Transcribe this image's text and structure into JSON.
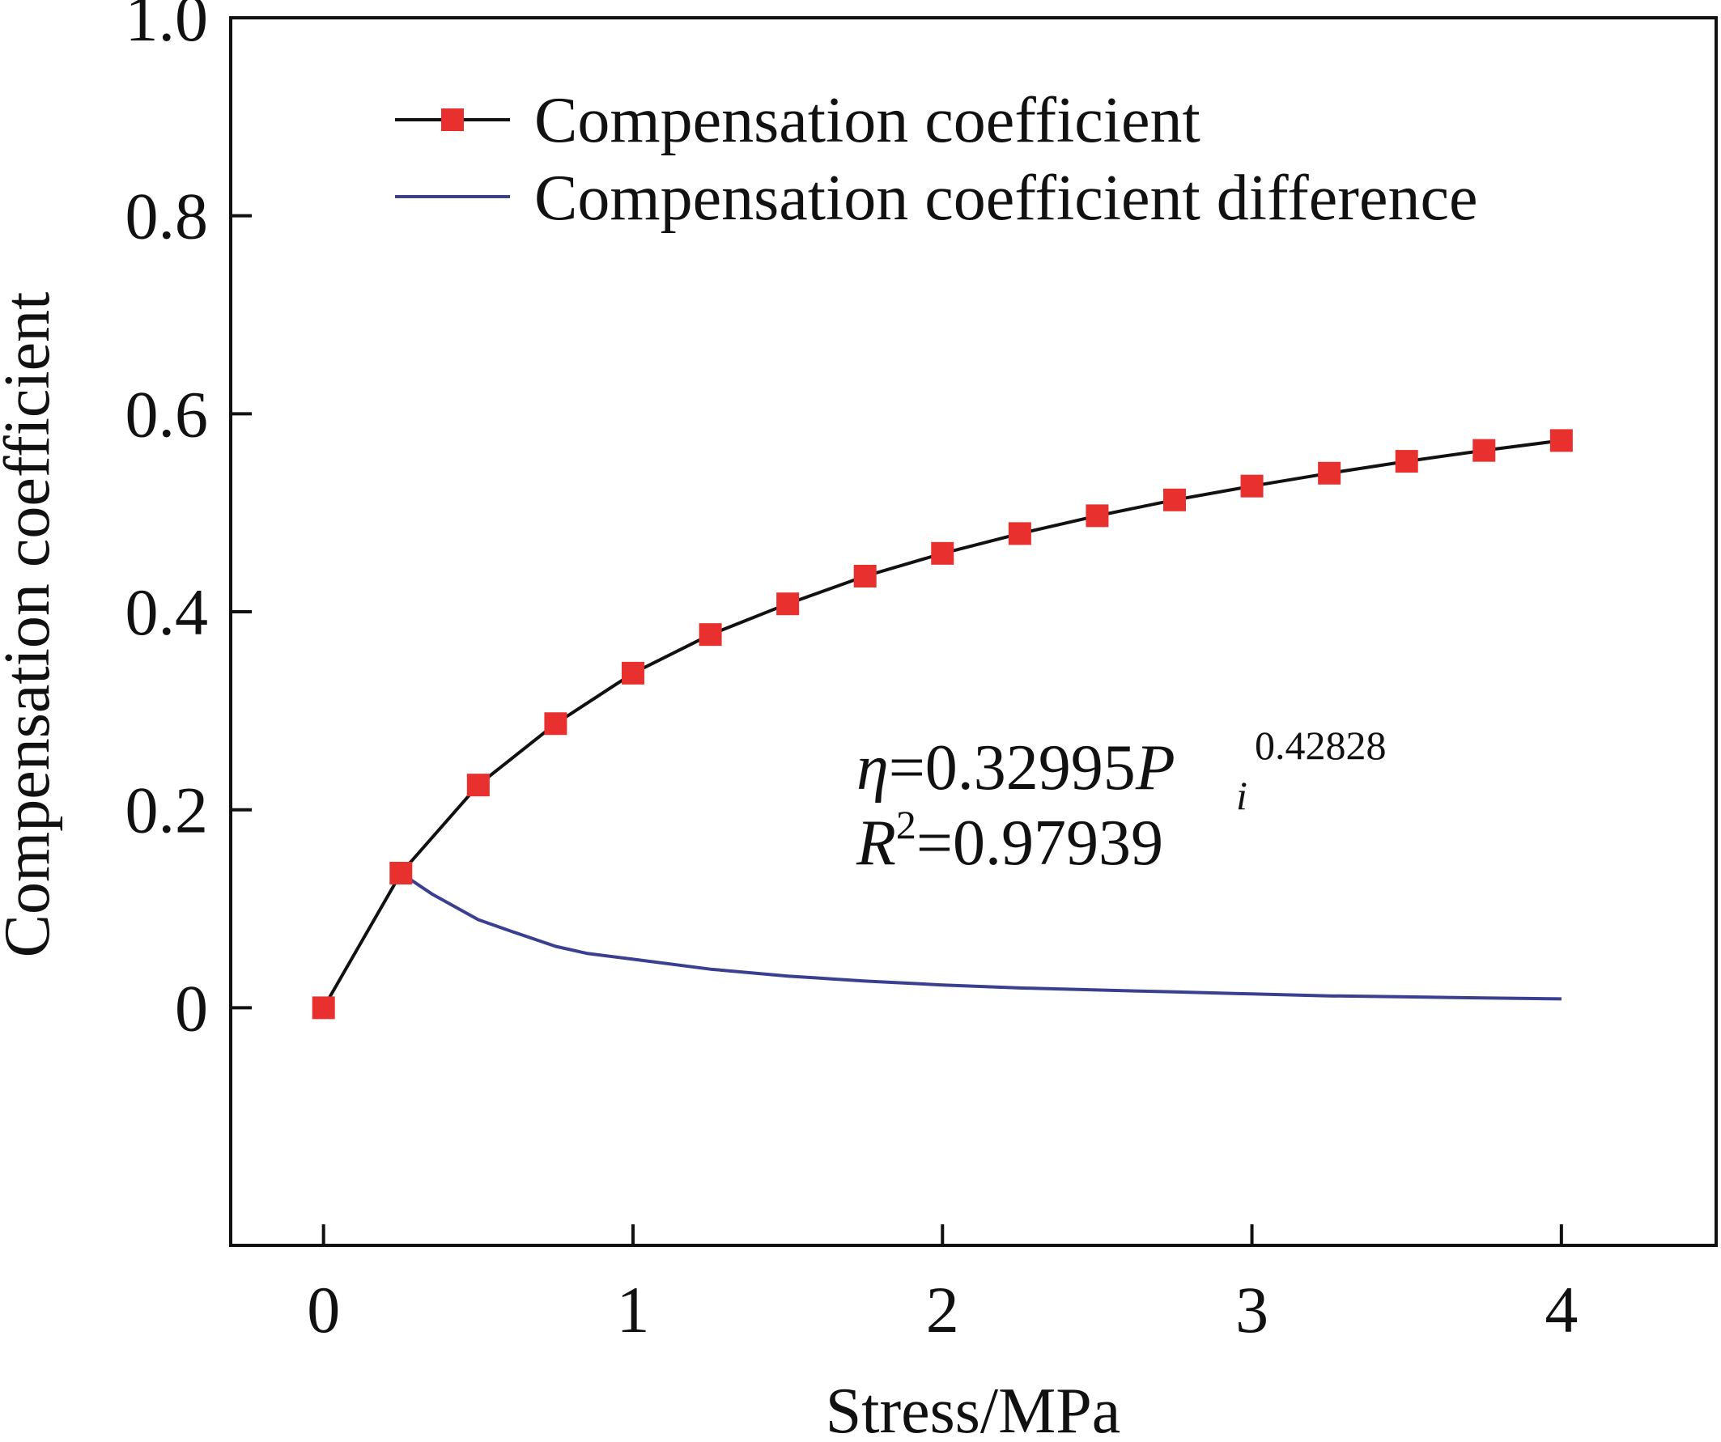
{
  "chart_data": {
    "type": "line",
    "title": "",
    "xlabel": "Stress/MPa",
    "ylabel": "Compensation coefficient",
    "xlim": [
      -0.3,
      4.5
    ],
    "ylim": [
      -0.24,
      1.0
    ],
    "xticks": [
      0,
      1,
      2,
      3,
      4
    ],
    "xtick_labels": [
      "0",
      "1",
      "2",
      "3",
      "4"
    ],
    "yticks": [
      0,
      0.2,
      0.4,
      0.6,
      0.8,
      1.0
    ],
    "ytick_labels": [
      "0",
      "0.2",
      "0.4",
      "0.6",
      "0.8",
      "1.0"
    ],
    "grid": false,
    "legend_position": "top",
    "series": [
      {
        "name": "Compensation coefficient",
        "color": "#111111",
        "marker": "square",
        "marker_color": "#e8302e",
        "x": [
          0,
          0.25,
          0.5,
          0.75,
          1.0,
          1.25,
          1.5,
          1.75,
          2.0,
          2.25,
          2.5,
          2.75,
          3.0,
          3.25,
          3.5,
          3.75,
          4.0
        ],
        "y": [
          0.0,
          0.136,
          0.225,
          0.287,
          0.338,
          0.377,
          0.408,
          0.436,
          0.459,
          0.479,
          0.497,
          0.513,
          0.527,
          0.54,
          0.552,
          0.563,
          0.573
        ]
      },
      {
        "name": "Compensation coefficient difference",
        "color": "#3a3f8f",
        "marker": "none",
        "x": [
          0.25,
          0.35,
          0.5,
          0.6,
          0.75,
          0.85,
          1.0,
          1.25,
          1.5,
          1.75,
          2.0,
          2.25,
          2.5,
          2.75,
          3.0,
          3.25,
          3.5,
          3.75,
          4.0
        ],
        "y": [
          0.136,
          0.115,
          0.089,
          0.078,
          0.062,
          0.055,
          0.049,
          0.039,
          0.032,
          0.027,
          0.023,
          0.02,
          0.018,
          0.016,
          0.014,
          0.012,
          0.011,
          0.01,
          0.009
        ]
      }
    ],
    "annotation": {
      "eta_symbol": "η",
      "eq_coeff": "=0.32995",
      "p_symbol": "P",
      "p_subscript": "i",
      "exponent": "0.42828",
      "r_symbol": "R",
      "r_sup": "2",
      "r_value": "=0.97939"
    }
  }
}
